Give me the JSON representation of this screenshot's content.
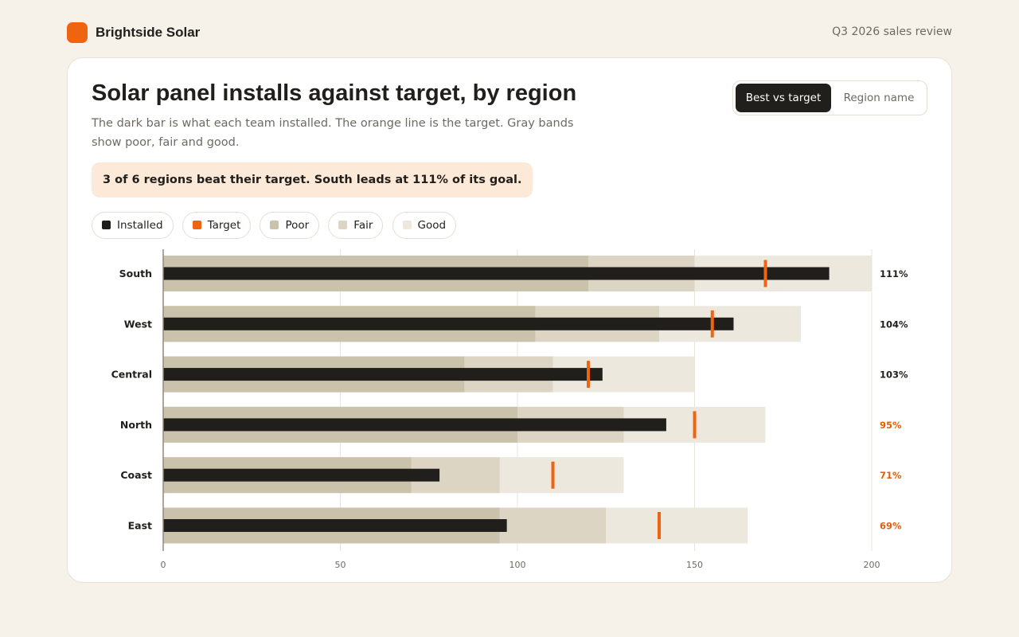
{
  "header": {
    "brand": "Brightside Solar",
    "context": "Q3 2026 sales review",
    "logo_color": "#ee6411"
  },
  "card": {
    "title": "Solar panel installs against target, by region",
    "subtitle": "The dark bar is what each team installed. The orange line is the target. Gray bands show poor, fair and good.",
    "callout": "3 of 6 regions beat their target. South leads at 111% of its goal."
  },
  "sort_toggle": {
    "options": [
      {
        "label": "Best vs target",
        "active": true
      },
      {
        "label": "Region name",
        "active": false
      }
    ]
  },
  "legend": {
    "items": [
      {
        "label": "Installed",
        "color": "#201f1c"
      },
      {
        "label": "Target",
        "color": "#ee6411"
      },
      {
        "label": "Poor",
        "color": "#cbc2ab"
      },
      {
        "label": "Fair",
        "color": "#ddd5c4"
      },
      {
        "label": "Good",
        "color": "#ede8de"
      }
    ]
  },
  "colors": {
    "installed": "#201f1c",
    "target": "#ee6411",
    "poor": "#cbc2ab",
    "fair": "#ddd5c4",
    "good": "#ede8de",
    "pct_above": "#201f1c",
    "pct_below": "#e0600f"
  },
  "chart_data": {
    "type": "bar",
    "subtype": "bullet",
    "orientation": "horizontal",
    "categories": [
      "South",
      "West",
      "Central",
      "North",
      "Coast",
      "East"
    ],
    "xlim": [
      0,
      200
    ],
    "xticks": [
      0,
      50,
      100,
      150,
      200
    ],
    "grid": true,
    "series": [
      {
        "name": "Installed",
        "values": [
          188,
          161,
          124,
          142,
          78,
          97
        ]
      },
      {
        "name": "Target",
        "values": [
          170,
          155,
          120,
          150,
          110,
          140
        ]
      },
      {
        "name": "Poor",
        "values": [
          120,
          105,
          85,
          100,
          70,
          95
        ]
      },
      {
        "name": "Fair",
        "values": [
          150,
          140,
          110,
          130,
          95,
          125
        ]
      },
      {
        "name": "Good",
        "values": [
          200,
          180,
          150,
          170,
          130,
          165
        ]
      }
    ],
    "percent_labels": [
      "111%",
      "104%",
      "103%",
      "95%",
      "71%",
      "69%"
    ]
  }
}
